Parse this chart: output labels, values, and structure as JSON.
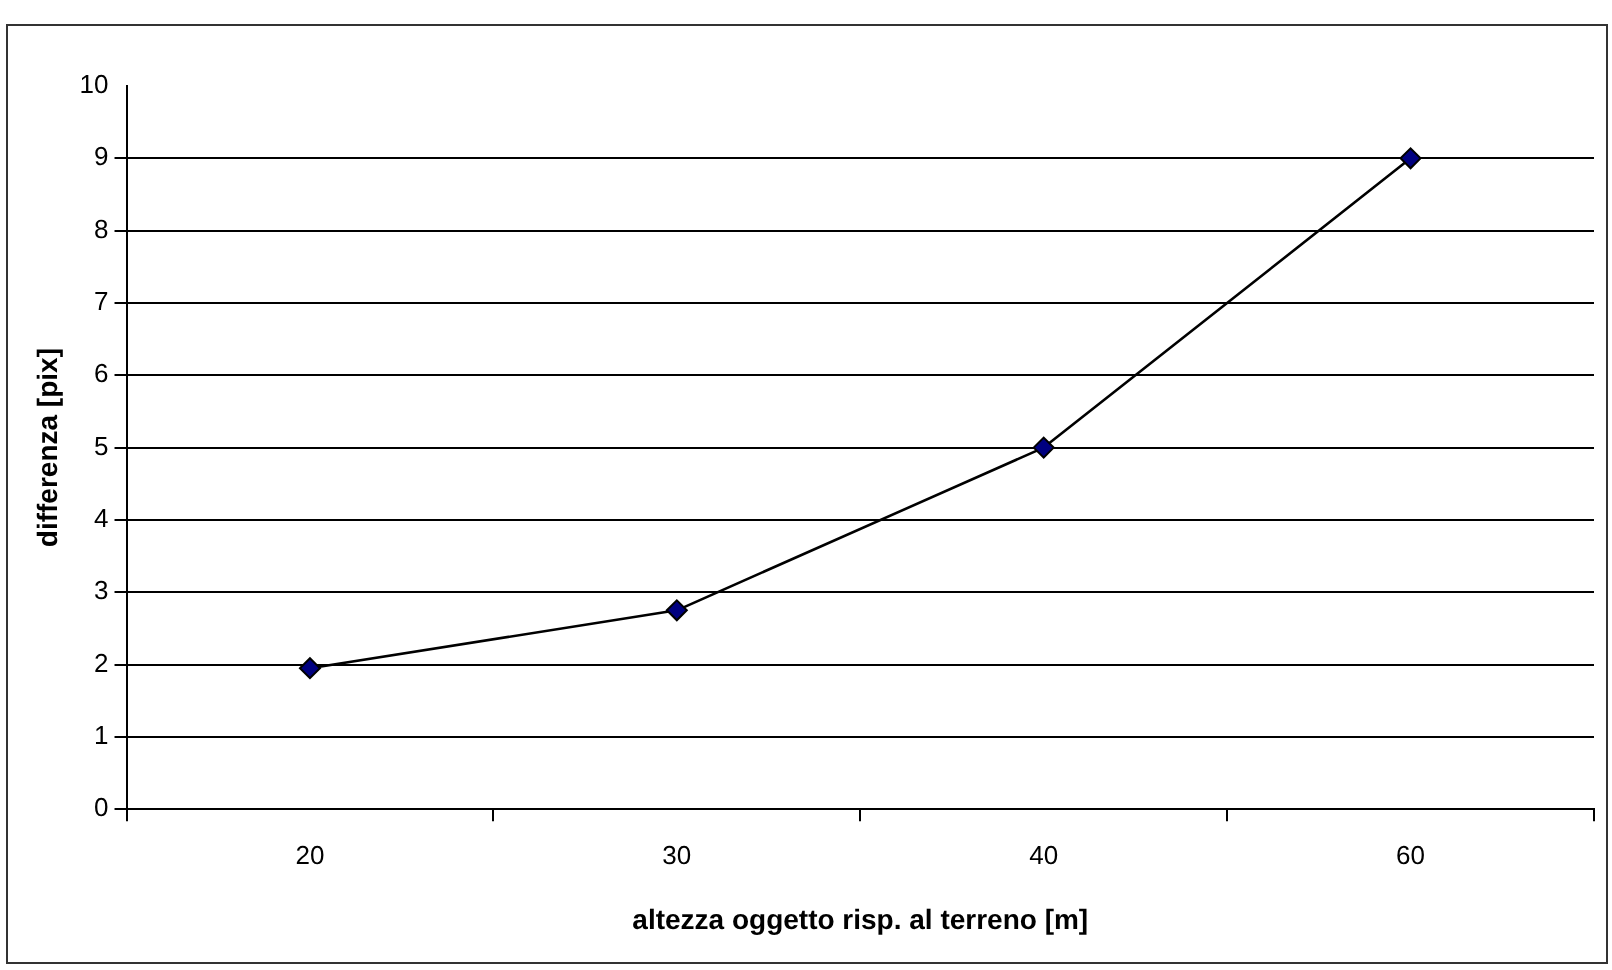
{
  "chart_data": {
    "type": "line",
    "xlabel": "altezza oggetto risp. al terreno [m]",
    "ylabel": "differenza [pix]",
    "categories": [
      "20",
      "30",
      "40",
      "60"
    ],
    "series": [
      {
        "color": "#000080",
        "values": [
          1.95,
          2.75,
          5,
          9
        ]
      }
    ],
    "ylim": [
      0,
      10
    ],
    "yticks": [
      0,
      1,
      2,
      3,
      4,
      5,
      6,
      7,
      8,
      9,
      10
    ],
    "grid": "y",
    "legend": false,
    "marker": "diamond",
    "line_style": "solid"
  }
}
